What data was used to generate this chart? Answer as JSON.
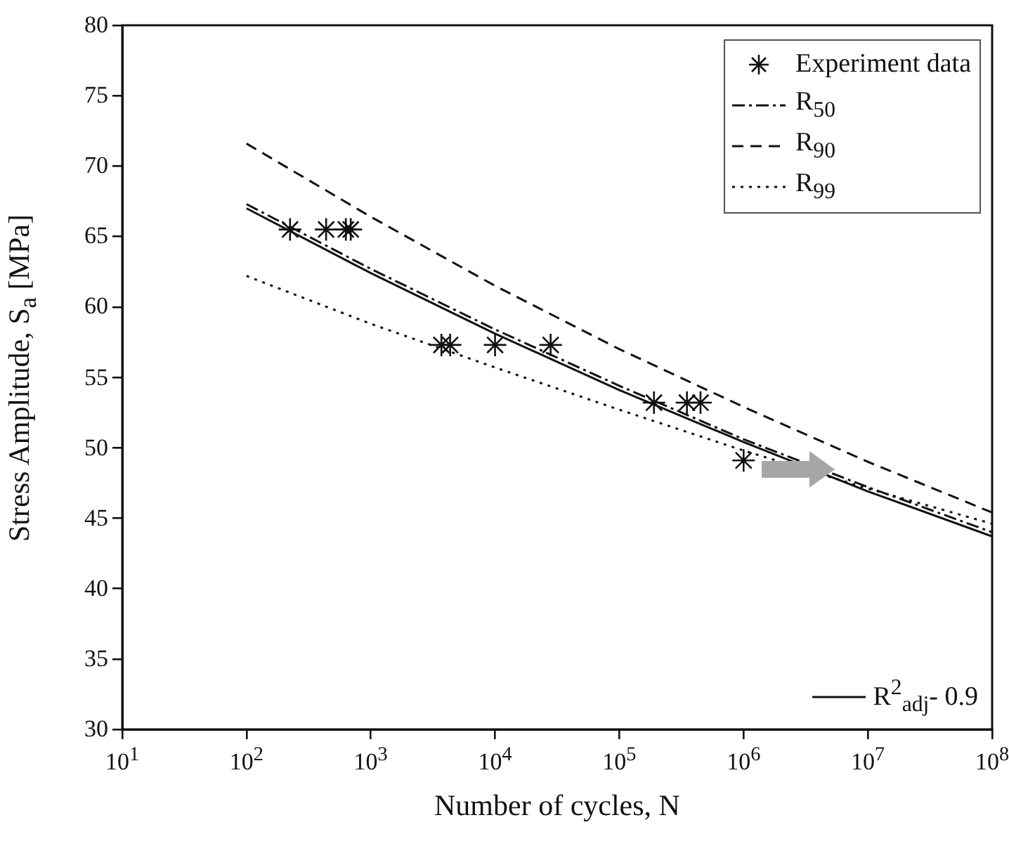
{
  "chart_data": {
    "type": "line",
    "xlabel": "Number of cycles, N",
    "ylabel": "Stress Amplitude, S$_{a}$ [MPa]",
    "log": "x",
    "grid": false,
    "legend": "right",
    "xlim": [
      10,
      100000000
    ],
    "xticks": [
      {
        "value": 10,
        "label": "10$^{1}$"
      },
      {
        "value": 100,
        "label": "10$^{2}$"
      },
      {
        "value": 1000,
        "label": "10$^{3}$"
      },
      {
        "value": 10000,
        "label": "10$^{4}$"
      },
      {
        "value": 100000,
        "label": "10$^{5}$"
      },
      {
        "value": 1000000,
        "label": "10$^{6}$"
      },
      {
        "value": 10000000,
        "label": "10$^{7}$"
      },
      {
        "value": 100000000,
        "label": "10$^{8}$"
      }
    ],
    "ylim": [
      30,
      80
    ],
    "yticks": [
      30,
      35,
      40,
      45,
      50,
      55,
      60,
      65,
      70,
      75,
      80
    ],
    "series": [
      {
        "name": "Experiment data",
        "type": "scatter",
        "marker": "cross",
        "color": "#111111",
        "x": [
          224,
          437,
          630,
          690,
          3700,
          4350,
          10000,
          28000,
          190000,
          350000,
          450000,
          1000000
        ],
        "values": [
          65.5,
          65.5,
          65.5,
          65.5,
          57.3,
          57.3,
          57.3,
          57.3,
          53.2,
          53.2,
          53.2,
          49.1
        ]
      },
      {
        "name": "R$_{50}$",
        "type": "line",
        "line_style": "dashdot",
        "color": "#111111",
        "x": [
          100,
          1000,
          10000,
          100000,
          1000000,
          10000000,
          100000000
        ],
        "values": [
          67.3,
          62.7,
          58.4,
          54.4,
          50.6,
          47.2,
          44.0
        ]
      },
      {
        "name": "R$_{90}$",
        "type": "line",
        "line_style": "dashed",
        "color": "#111111",
        "x": [
          100,
          1000,
          10000,
          100000,
          1000000,
          10000000,
          100000000
        ],
        "values": [
          71.6,
          66.4,
          61.5,
          57.0,
          52.9,
          49.0,
          45.4
        ]
      },
      {
        "name": "R$_{99}$",
        "type": "line",
        "line_style": "dotted",
        "color": "#111111",
        "x": [
          100,
          1000,
          10000,
          100000,
          1000000,
          10000000,
          100000000
        ],
        "values": [
          62.2,
          58.8,
          55.7,
          52.7,
          49.8,
          47.1,
          44.6
        ]
      },
      {
        "name": "R$^{2}$$_{adj}$- 0.9",
        "type": "line",
        "line_style": "solid",
        "color": "#111111",
        "x": [
          100,
          1000,
          10000,
          100000,
          1000000,
          10000000,
          100000000
        ],
        "values": [
          67.0,
          62.4,
          58.1,
          54.1,
          50.4,
          46.9,
          43.7
        ]
      }
    ]
  }
}
